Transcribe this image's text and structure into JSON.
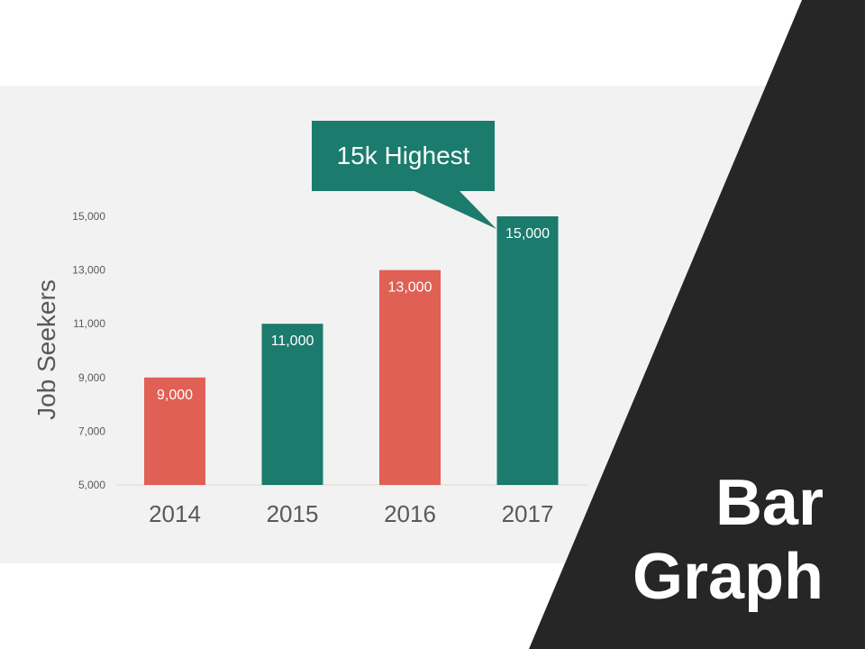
{
  "title_lines": [
    "Bar",
    "Graph"
  ],
  "callout": {
    "text": "15k Highest"
  },
  "colors": {
    "coral": "#e06055",
    "teal": "#1b7b6d",
    "dark": "#262626",
    "panel": "#f2f2f2",
    "axis_text": "#595959"
  },
  "chart_data": {
    "type": "bar",
    "title": "",
    "xlabel": "",
    "ylabel": "Job Seekers",
    "categories": [
      "2014",
      "2015",
      "2016",
      "2017"
    ],
    "values": [
      9000,
      11000,
      13000,
      15000
    ],
    "data_labels": [
      "9,000",
      "11,000",
      "13,000",
      "15,000"
    ],
    "bar_colors": [
      "#e06055",
      "#1b7b6d",
      "#e06055",
      "#1b7b6d"
    ],
    "ylim": [
      5000,
      15000
    ],
    "yticks": [
      5000,
      7000,
      9000,
      11000,
      13000,
      15000
    ],
    "ytick_labels": [
      "5,000",
      "7,000",
      "9,000",
      "11,000",
      "13,000",
      "15,000"
    ],
    "grid": false,
    "legend": "none"
  }
}
